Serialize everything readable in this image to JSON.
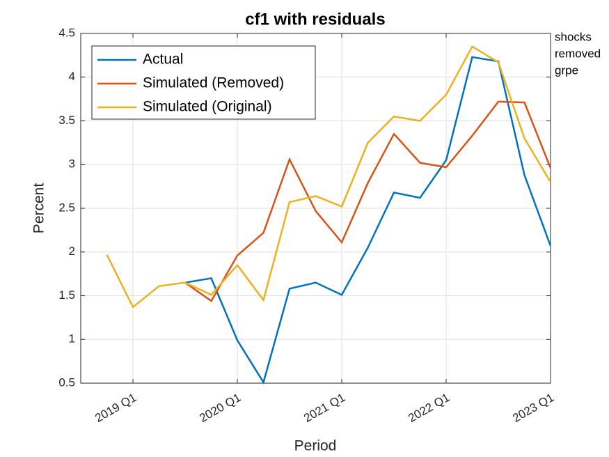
{
  "chart_data": {
    "type": "line",
    "title": "cf1 with residuals",
    "x_label": "Period",
    "y_label": "Percent",
    "annotation": [
      "shocks",
      "removed",
      "grpe"
    ],
    "categories": [
      null,
      "2019 Q1",
      null,
      null,
      null,
      "2020 Q1",
      null,
      null,
      null,
      "2021 Q1",
      null,
      null,
      null,
      "2022 Q1",
      null,
      null,
      null,
      "2023 Q1"
    ],
    "series": [
      {
        "name": "Actual",
        "color": "#0072bd",
        "values": [
          null,
          null,
          null,
          1.65,
          1.7,
          0.99,
          0.51,
          1.58,
          1.65,
          1.51,
          2.05,
          2.68,
          2.62,
          3.05,
          4.23,
          4.18,
          2.88,
          2.07
        ]
      },
      {
        "name": "Simulated (Removed)",
        "color": "#d95319",
        "values": [
          null,
          null,
          null,
          1.65,
          1.44,
          1.96,
          2.22,
          3.06,
          2.47,
          2.11,
          2.79,
          3.35,
          3.02,
          2.97,
          3.33,
          3.72,
          3.71,
          2.96
        ]
      },
      {
        "name": "Simulated (Original)",
        "color": "#edb120",
        "values": [
          1.97,
          1.37,
          1.61,
          1.65,
          1.51,
          1.85,
          1.45,
          2.57,
          2.64,
          2.52,
          3.25,
          3.55,
          3.5,
          3.8,
          4.35,
          4.17,
          3.3,
          2.8
        ]
      }
    ],
    "ylim": [
      0.5,
      4.5
    ],
    "yticks": [
      0.5,
      1,
      1.5,
      2,
      2.5,
      3,
      3.5,
      4,
      4.5
    ],
    "grid": true,
    "legend": "northwest"
  }
}
